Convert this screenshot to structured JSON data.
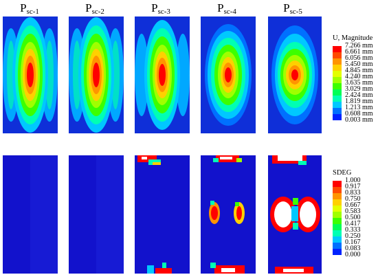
{
  "columns": [
    {
      "main": "P",
      "sub": "sc-1"
    },
    {
      "main": "P",
      "sub": "sc-2"
    },
    {
      "main": "P",
      "sub": "sc-3"
    },
    {
      "main": "P",
      "sub": "sc-4"
    },
    {
      "main": "P",
      "sub": "sc-5"
    }
  ],
  "legend_top": {
    "title": "U, Magnitude",
    "values": [
      "7.266 mm",
      "6.661 mm",
      "6.056 mm",
      "5.450 mm",
      "4.845 mm",
      "4.240 mm",
      "3.635 mm",
      "3.029 mm",
      "2.424 mm",
      "1.819 mm",
      "1.213 mm",
      "0.608 mm",
      "0.003 mm"
    ]
  },
  "legend_bottom": {
    "title": "SDEG",
    "values": [
      "1.000",
      "0.917",
      "0.833",
      "0.750",
      "0.667",
      "0.583",
      "0.500",
      "0.417",
      "0.333",
      "0.250",
      "0.167",
      "0.083",
      "0.000"
    ]
  },
  "colors": {
    "scale": [
      "#ff0000",
      "#ff4a00",
      "#ff9400",
      "#ffd000",
      "#e3ff00",
      "#a0ff00",
      "#3cff00",
      "#00ff55",
      "#00ffb4",
      "#00c8ff",
      "#0070ff",
      "#0022ff",
      "#0000c8"
    ],
    "panel_bg_bottom": "#1414d2"
  }
}
